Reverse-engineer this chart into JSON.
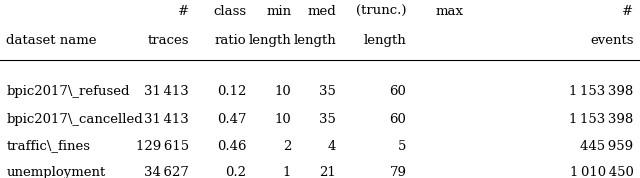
{
  "col_headers_line1": [
    "#",
    "class",
    "min",
    "med",
    "(trunc.)",
    "max",
    "#"
  ],
  "col_headers_line2": [
    "traces",
    "ratio",
    "length",
    "length",
    "length",
    "",
    "events"
  ],
  "row_label_header": "dataset name",
  "rows": [
    {
      "name": "bpic2017\\_refused",
      "traces": "31 413",
      "class_ratio": "0.12",
      "min_len": "10",
      "med_len": "35",
      "trunc_len": "60",
      "max_events": "1 153 398"
    },
    {
      "name": "bpic2017\\_cancelled",
      "traces": "31 413",
      "class_ratio": "0.47",
      "min_len": "10",
      "med_len": "35",
      "trunc_len": "60",
      "max_events": "1 153 398"
    },
    {
      "name": "traffic\\_fines",
      "traces": "129 615",
      "class_ratio": "0.46",
      "min_len": "2",
      "med_len": "4",
      "trunc_len": "5",
      "max_events": "445 959"
    },
    {
      "name": "unemployment",
      "traces": "34 627",
      "class_ratio": "0.2",
      "min_len": "1",
      "med_len": "21",
      "trunc_len": "79",
      "max_events": "1 010 450"
    }
  ],
  "figsize": [
    6.4,
    1.78
  ],
  "dpi": 100
}
